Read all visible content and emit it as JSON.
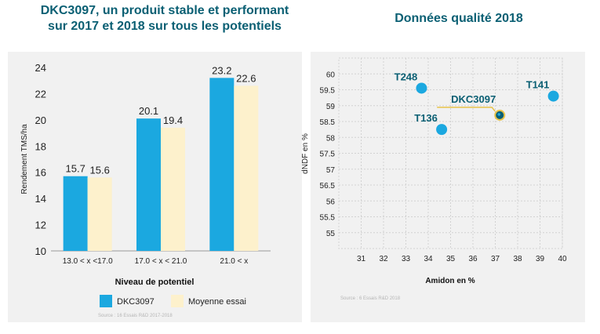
{
  "chart_data": [
    {
      "type": "bar",
      "title": "DKC3097, un produit stable et performant sur 2017 et 2018 sur tous les potentiels",
      "title_lines": [
        "DKC3097, un produit stable et performant",
        "sur 2017 et 2018 sur tous les potentiels"
      ],
      "xlabel": "Niveau de potentiel",
      "ylabel": "Rendement TMS/ha",
      "categories": [
        "13.0 < x <17.0",
        "17.0 < x < 21.0",
        "21.0 < x"
      ],
      "series": [
        {
          "name": "DKC3097",
          "values": [
            15.7,
            20.1,
            23.2
          ],
          "color": "#1ba8e0"
        },
        {
          "name": "Moyenne essai",
          "values": [
            15.6,
            19.4,
            22.6
          ],
          "color": "#fdf1cc"
        }
      ],
      "ylim": [
        10,
        24
      ],
      "yticks": [
        10,
        12,
        14,
        16,
        18,
        20,
        22,
        24
      ],
      "legend_position": "bottom",
      "source": "Source : 16 Essais R&D 2017-2018"
    },
    {
      "type": "scatter",
      "title": "Données qualité 2018",
      "xlabel": "Amidon en %",
      "ylabel": "dNDF en %",
      "xlim": [
        30,
        40
      ],
      "ylim": [
        54.5,
        60.5
      ],
      "xticks": [
        31,
        32,
        33,
        34,
        35,
        36,
        37,
        38,
        39,
        40
      ],
      "yticks": [
        55,
        55.5,
        56,
        56.5,
        57,
        57.5,
        58,
        58.5,
        59,
        59.5,
        60
      ],
      "grid": true,
      "points": [
        {
          "label": "T248",
          "x": 33.7,
          "y": 59.55,
          "highlight": false
        },
        {
          "label": "T141",
          "x": 39.6,
          "y": 59.3,
          "highlight": false
        },
        {
          "label": "DKC3097",
          "x": 37.2,
          "y": 58.7,
          "highlight": true
        },
        {
          "label": "T136",
          "x": 34.6,
          "y": 58.25,
          "highlight": false
        }
      ],
      "point_color": "#1ba8e0",
      "highlight_color": "#0a5f73",
      "accent_color": "#e8c34a",
      "label_color": "#0a5f73",
      "source": "Source : 6 Essais R&D 2018"
    }
  ]
}
